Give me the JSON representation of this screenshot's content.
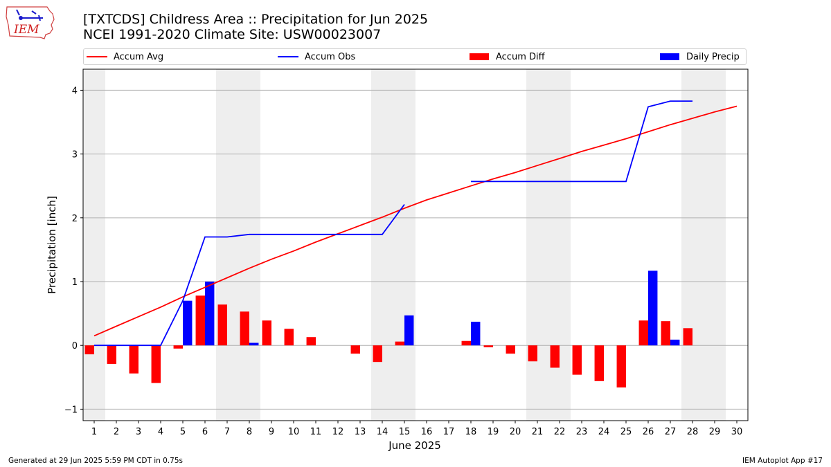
{
  "title_line1": "[TXTCDS] Childress Area :: Precipitation for Jun 2025",
  "title_line2": "NCEI 1991-2020 Climate Site: USW00023007",
  "logo_text": "IEM",
  "footer_left": "Generated at 29 Jun 2025 5:59 PM CDT in 0.75s",
  "footer_right": "IEM Autoplot App #17",
  "legend": [
    {
      "label": "Accum Avg",
      "color": "#ff0000",
      "kind": "line"
    },
    {
      "label": "Accum Obs",
      "color": "#0000ff",
      "kind": "line"
    },
    {
      "label": "Accum Diff",
      "color": "#ff0000",
      "kind": "patch"
    },
    {
      "label": "Daily Precip",
      "color": "#0000ff",
      "kind": "patch"
    }
  ],
  "chart_data": {
    "type": "bar",
    "xlabel": "June 2025",
    "ylabel": "Precipitation [inch]",
    "xlim": [
      0.5,
      30.5
    ],
    "ylim": [
      -1.18,
      4.33
    ],
    "x_ticks": [
      1,
      2,
      3,
      4,
      5,
      6,
      7,
      8,
      9,
      10,
      11,
      12,
      13,
      14,
      15,
      16,
      17,
      18,
      19,
      20,
      21,
      22,
      23,
      24,
      25,
      26,
      27,
      28,
      29,
      30
    ],
    "y_ticks": [
      -1,
      0,
      1,
      2,
      3,
      4
    ],
    "grid": "horizontal",
    "weekend_shading_days": [
      [
        0.5,
        1.5
      ],
      [
        6.5,
        8.5
      ],
      [
        13.5,
        15.5
      ],
      [
        20.5,
        22.5
      ],
      [
        27.5,
        29.5
      ]
    ],
    "days": [
      1,
      2,
      3,
      4,
      5,
      6,
      7,
      8,
      9,
      10,
      11,
      12,
      13,
      14,
      15,
      16,
      17,
      18,
      19,
      20,
      21,
      22,
      23,
      24,
      25,
      26,
      27,
      28,
      29,
      30
    ],
    "series": [
      {
        "name": "Accum Avg",
        "type": "line",
        "color": "#ff0000",
        "values": [
          0.15,
          0.3,
          0.45,
          0.6,
          0.76,
          0.91,
          1.06,
          1.21,
          1.35,
          1.48,
          1.62,
          1.75,
          1.88,
          2.01,
          2.15,
          2.28,
          2.39,
          2.5,
          2.61,
          2.71,
          2.82,
          2.93,
          3.04,
          3.14,
          3.24,
          3.35,
          3.46,
          3.56,
          3.66,
          3.75
        ]
      },
      {
        "name": "Accum Obs",
        "type": "line",
        "color": "#0000ff",
        "values": [
          0.0,
          0.0,
          0.0,
          0.0,
          0.7,
          1.7,
          1.7,
          1.74,
          1.74,
          1.74,
          1.74,
          1.74,
          1.74,
          1.74,
          2.21,
          null,
          null,
          2.57,
          2.57,
          2.57,
          2.57,
          2.57,
          2.57,
          2.57,
          2.57,
          3.74,
          3.83,
          3.83,
          null,
          null
        ]
      },
      {
        "name": "Accum Diff",
        "type": "bar",
        "color": "#ff0000",
        "values": [
          -0.14,
          -0.29,
          -0.44,
          -0.59,
          -0.05,
          0.78,
          0.64,
          0.53,
          0.39,
          0.26,
          0.13,
          0.0,
          -0.13,
          -0.26,
          0.06,
          null,
          null,
          0.07,
          -0.03,
          -0.13,
          -0.25,
          -0.35,
          -0.46,
          -0.56,
          -0.66,
          0.39,
          0.38,
          0.27,
          null,
          null
        ]
      },
      {
        "name": "Daily Precip",
        "type": "bar",
        "color": "#0000ff",
        "values": [
          0.0,
          0.0,
          0.0,
          0.0,
          0.7,
          1.0,
          0.0,
          0.04,
          0.0,
          0.0,
          0.0,
          0.0,
          0.0,
          0.0,
          0.47,
          null,
          null,
          0.37,
          0.0,
          0.0,
          0.0,
          0.0,
          0.0,
          0.0,
          0.0,
          1.17,
          0.09,
          0.0,
          null,
          null
        ]
      }
    ]
  }
}
